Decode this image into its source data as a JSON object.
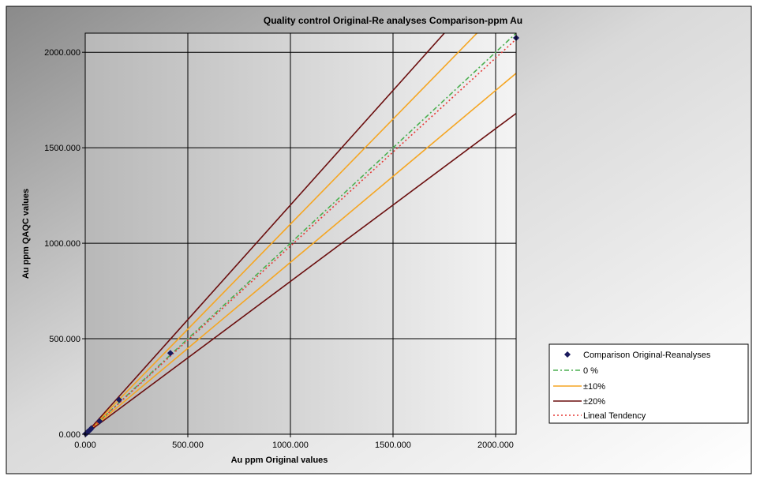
{
  "chart_data": {
    "type": "scatter",
    "title": "Quality control Original-Re analyses Comparison-ppm Au",
    "xlabel": "Au ppm Original values",
    "ylabel": "Au ppm QAQC values",
    "xlim": [
      0,
      2100
    ],
    "ylim": [
      0,
      2100
    ],
    "x_ticks": [
      0,
      500,
      1000,
      1500,
      2000
    ],
    "y_ticks": [
      0,
      500,
      1000,
      1500,
      2000
    ],
    "x_tick_labels": [
      "0.000",
      "500.000",
      "1000.000",
      "1500.000",
      "2000.000"
    ],
    "y_tick_labels": [
      "0.000",
      "500.000",
      "1000.000",
      "1500.000",
      "2000.000"
    ],
    "grid": true,
    "legend_position": "bottom-right",
    "points": [
      {
        "x": 2,
        "y": 2
      },
      {
        "x": 5,
        "y": 5
      },
      {
        "x": 8,
        "y": 7
      },
      {
        "x": 12,
        "y": 13
      },
      {
        "x": 18,
        "y": 17
      },
      {
        "x": 25,
        "y": 24
      },
      {
        "x": 30,
        "y": 31
      },
      {
        "x": 70,
        "y": 68
      },
      {
        "x": 165,
        "y": 180
      },
      {
        "x": 415,
        "y": 425
      },
      {
        "x": 2100,
        "y": 2075
      }
    ],
    "lines": [
      {
        "key": "zero",
        "slope": 1.0,
        "intercept": 0
      },
      {
        "key": "plus10",
        "slope": 1.1,
        "intercept": 0
      },
      {
        "key": "minus10",
        "slope": 0.9,
        "intercept": 0
      },
      {
        "key": "plus20",
        "slope": 1.2,
        "intercept": 0
      },
      {
        "key": "minus20",
        "slope": 0.8,
        "intercept": 0
      },
      {
        "key": "trend",
        "slope": 0.985,
        "intercept": 0
      }
    ],
    "legend": {
      "comparison": "Comparison Original-Reanalyses",
      "zero": "0 %",
      "pm10": "±10%",
      "pm20": "±20%",
      "trend": "Lineal Tendency"
    },
    "colors": {
      "points": "#1a1a5e",
      "zero": "#4caf50",
      "pm10": "#f5a623",
      "pm20": "#6b0f0f",
      "trend": "#e53935"
    }
  }
}
